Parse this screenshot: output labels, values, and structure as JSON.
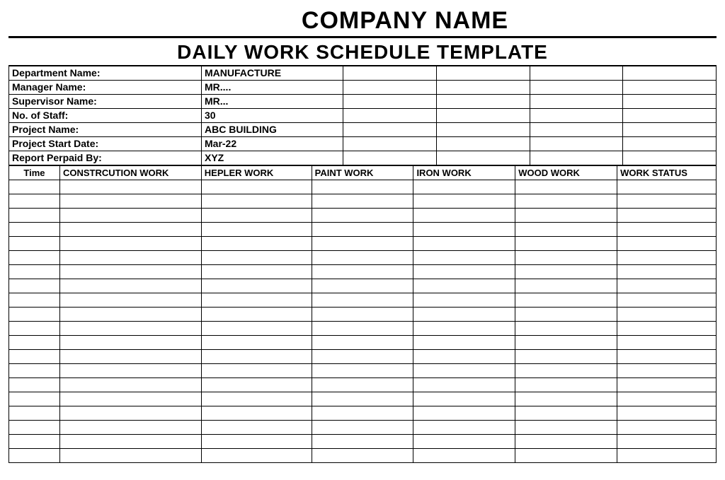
{
  "header": {
    "company": "COMPANY NAME",
    "subtitle": "DAILY WORK SCHEDULE TEMPLATE"
  },
  "info": {
    "rows": [
      {
        "label": "Department Name:",
        "value": "MANUFACTURE"
      },
      {
        "label": "Manager Name:",
        "value": "MR...."
      },
      {
        "label": "Supervisor Name:",
        "value": "MR..."
      },
      {
        "label": "No. of Staff:",
        "value": "30"
      },
      {
        "label": "Project Name:",
        "value": "ABC BUILDING"
      },
      {
        "label": "Project Start Date:",
        "value": "Mar-22"
      },
      {
        "label": "Report Perpaid By:",
        "value": "XYZ"
      }
    ],
    "empty_cols": 4
  },
  "schedule": {
    "columns": [
      "Time",
      "CONSTRCUTION WORK",
      "HEPLER WORK",
      "PAINT WORK",
      "IRON WORK",
      "WOOD WORK",
      "WORK STATUS"
    ],
    "row_count": 20
  },
  "style": {
    "background_color": "#ffffff",
    "border_color": "#000000",
    "title_fontsize": 34,
    "subtitle_fontsize": 28,
    "body_fontsize": 14,
    "header_fontsize": 13
  }
}
